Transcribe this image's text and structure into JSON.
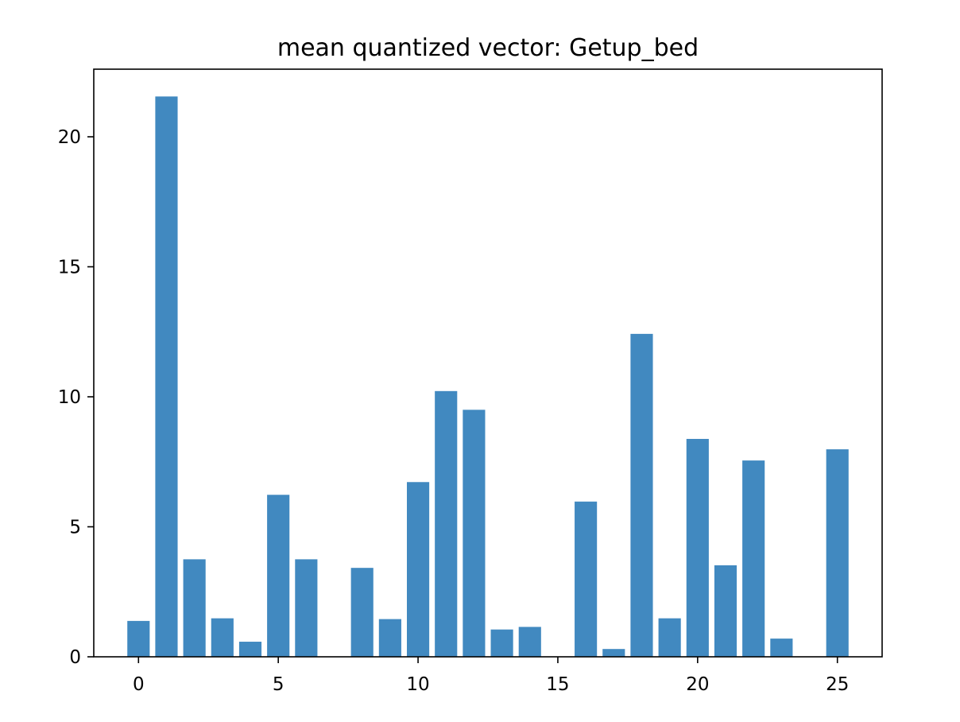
{
  "chart_data": {
    "type": "bar",
    "title": "mean quantized vector: Getup_bed",
    "xlabel": "",
    "ylabel": "",
    "x": [
      0,
      1,
      2,
      3,
      4,
      5,
      6,
      7,
      8,
      9,
      10,
      11,
      12,
      13,
      14,
      15,
      16,
      17,
      18,
      19,
      20,
      21,
      22,
      23,
      24,
      25
    ],
    "values": [
      1.38,
      21.55,
      3.75,
      1.48,
      0.58,
      6.23,
      3.75,
      0,
      3.42,
      1.45,
      6.72,
      10.22,
      9.5,
      1.05,
      1.15,
      0,
      5.97,
      0.3,
      12.42,
      1.48,
      8.38,
      3.52,
      7.55,
      0.7,
      0,
      7.98
    ],
    "xlim": [
      -1.6,
      26.6
    ],
    "ylim": [
      0,
      22.6
    ],
    "xticks": [
      0,
      5,
      10,
      15,
      20,
      25
    ],
    "yticks": [
      0,
      5,
      10,
      15,
      20
    ],
    "bar_color": "#4189c0",
    "grid": false,
    "legend": "none"
  }
}
